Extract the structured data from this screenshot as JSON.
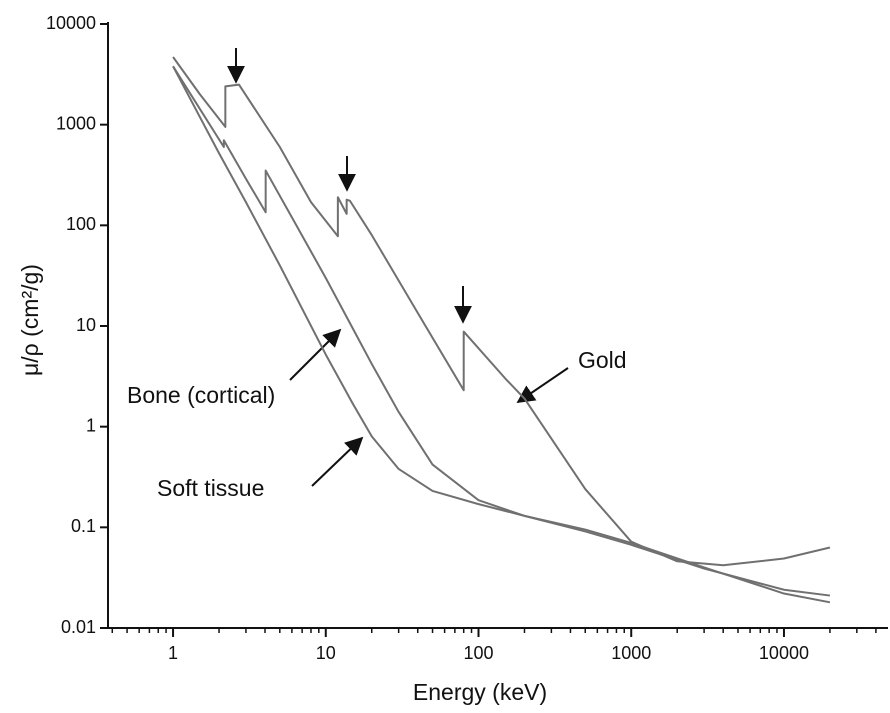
{
  "chart_data": {
    "type": "line",
    "x_label": "Energy (keV)",
    "y_label": "μ/ρ (cm²/g)",
    "log_x": true,
    "log_y": true,
    "xlim": [
      0.375,
      48000
    ],
    "ylim": [
      0.01,
      10000
    ],
    "xticks": [
      1,
      10,
      100,
      1000,
      10000
    ],
    "yticks": [
      0.01,
      0.1,
      1,
      10,
      100,
      1000,
      10000
    ],
    "grid": false,
    "series": [
      {
        "name": "Gold",
        "color": "#707070",
        "x": [
          1,
          1.5,
          2.2,
          2.2,
          2.7,
          5,
          8,
          12,
          12,
          13.7,
          13.7,
          14.4,
          20,
          40,
          80,
          80,
          150,
          200,
          500,
          1000,
          2000,
          4000,
          10000,
          20000
        ],
        "values": [
          4700,
          2000,
          950,
          2400,
          2500,
          600,
          170,
          78,
          190,
          130,
          180,
          175,
          80,
          13.5,
          2.3,
          8.8,
          3,
          1.9,
          0.24,
          0.072,
          0.046,
          0.042,
          0.049,
          0.063
        ]
      },
      {
        "name": "Bone (cortical)",
        "color": "#707070",
        "x": [
          1,
          2.15,
          2.15,
          3,
          4.04,
          4.04,
          6,
          10,
          15,
          20,
          30,
          50,
          100,
          200,
          500,
          1000,
          3000,
          10000,
          20000
        ],
        "values": [
          3800,
          600,
          700,
          290,
          135,
          350,
          120,
          30,
          9.5,
          4.2,
          1.4,
          0.42,
          0.186,
          0.13,
          0.091,
          0.067,
          0.039,
          0.024,
          0.021
        ]
      },
      {
        "name": "Soft tissue",
        "color": "#707070",
        "x": [
          1,
          2,
          3,
          5,
          10,
          15,
          20,
          30,
          50,
          100,
          200,
          500,
          1000,
          3000,
          10000,
          20000
        ],
        "values": [
          3800,
          520,
          170,
          40,
          5.2,
          1.7,
          0.8,
          0.38,
          0.23,
          0.17,
          0.13,
          0.095,
          0.07,
          0.04,
          0.022,
          0.018
        ]
      }
    ]
  }
}
